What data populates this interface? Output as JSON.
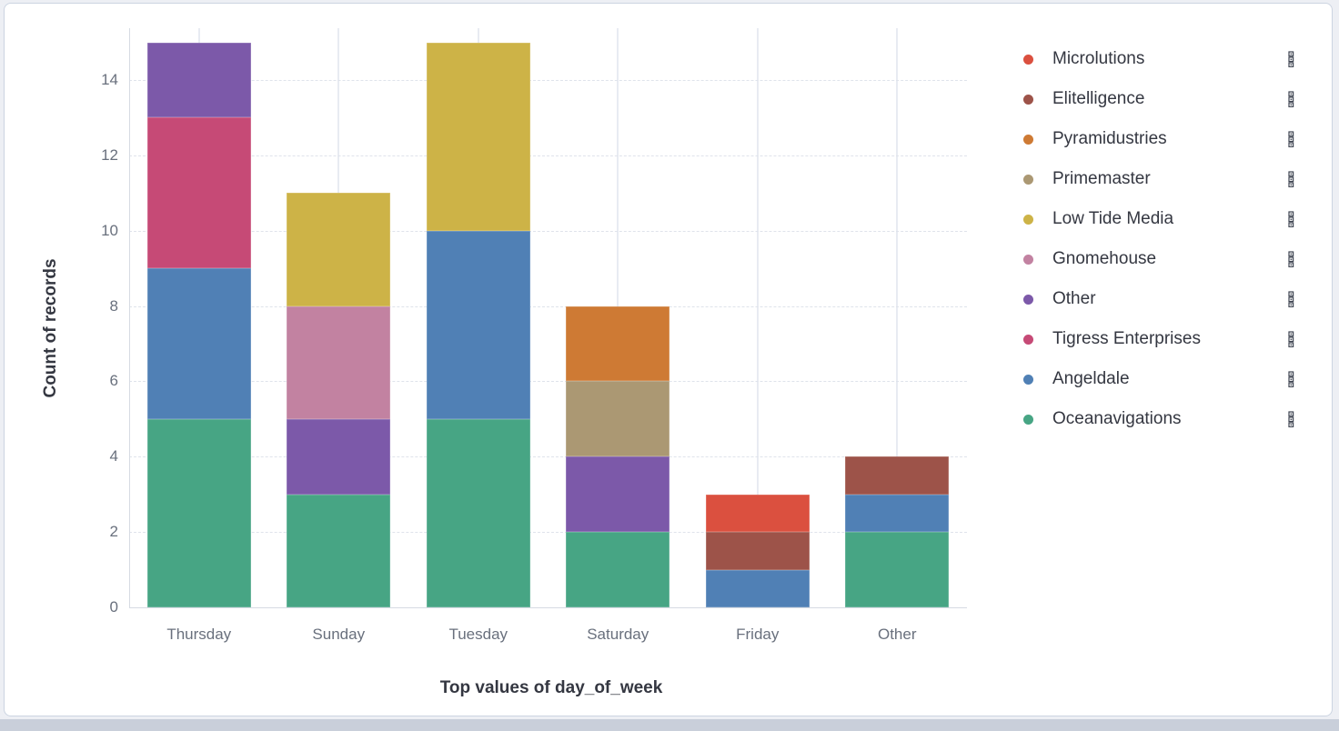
{
  "page": {
    "background_color": "#edeff4",
    "bottom_band_color": "#c9cfda",
    "card_border_color": "#ccd4e1"
  },
  "chart_data": {
    "type": "bar",
    "stacked": true,
    "title": "",
    "xlabel": "Top values of day_of_week",
    "ylabel": "Count of records",
    "categories": [
      "Thursday",
      "Sunday",
      "Tuesday",
      "Saturday",
      "Friday",
      "Other"
    ],
    "yticks": [
      0,
      2,
      4,
      6,
      8,
      10,
      12,
      14
    ],
    "ylim": [
      0,
      15.4
    ],
    "grid": {
      "horizontal": "dashed",
      "vertical": "solid-at-category-centers"
    },
    "legend_position": "right",
    "stack_order": "bottom-up follows reverse legend order",
    "series": [
      {
        "name": "Microlutions",
        "color": "#DB503F",
        "values": [
          0,
          0,
          0,
          0,
          1,
          0
        ]
      },
      {
        "name": "Elitelligence",
        "color": "#9D5349",
        "values": [
          0,
          0,
          0,
          0,
          1,
          1
        ]
      },
      {
        "name": "Pyramidustries",
        "color": "#CE7A34",
        "values": [
          0,
          0,
          0,
          2,
          0,
          0
        ]
      },
      {
        "name": "Primemaster",
        "color": "#AB9873",
        "values": [
          0,
          0,
          0,
          2,
          0,
          0
        ]
      },
      {
        "name": "Low Tide Media",
        "color": "#CDB347",
        "values": [
          0,
          3,
          5,
          0,
          0,
          0
        ]
      },
      {
        "name": "Gnomehouse",
        "color": "#C282A1",
        "values": [
          0,
          3,
          0,
          0,
          0,
          0
        ]
      },
      {
        "name": "Other",
        "color": "#7C59A9",
        "values": [
          2,
          2,
          0,
          2,
          0,
          0
        ]
      },
      {
        "name": "Tigress Enterprises",
        "color": "#C64A76",
        "values": [
          4,
          0,
          0,
          0,
          0,
          0
        ]
      },
      {
        "name": "Angeldale",
        "color": "#5080B5",
        "values": [
          4,
          0,
          5,
          0,
          1,
          1
        ]
      },
      {
        "name": "Oceanavigations",
        "color": "#47A584",
        "values": [
          5,
          3,
          5,
          2,
          0,
          2
        ]
      }
    ],
    "totals_by_category": [
      15,
      11,
      15,
      8,
      3,
      4
    ]
  },
  "legend": {
    "actions_icon": "legend-actions-icon"
  }
}
